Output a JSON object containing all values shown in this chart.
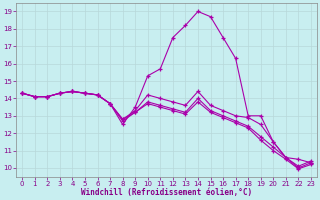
{
  "xlabel": "Windchill (Refroidissement éolien,°C)",
  "background_color": "#c8eef0",
  "grid_color": "#b8d8da",
  "line_color": "#aa00aa",
  "xlim_min": -0.5,
  "xlim_max": 23.5,
  "ylim_min": 9.5,
  "ylim_max": 19.5,
  "yticks": [
    10,
    11,
    12,
    13,
    14,
    15,
    16,
    17,
    18,
    19
  ],
  "xticks": [
    0,
    1,
    2,
    3,
    4,
    5,
    6,
    7,
    8,
    9,
    10,
    11,
    12,
    13,
    14,
    15,
    16,
    17,
    18,
    19,
    20,
    21,
    22,
    23
  ],
  "series": [
    [
      14.3,
      14.1,
      14.1,
      14.3,
      14.4,
      14.3,
      14.2,
      13.7,
      12.5,
      13.5,
      15.3,
      15.7,
      17.5,
      18.2,
      19.0,
      18.7,
      17.5,
      16.3,
      13.0,
      13.0,
      11.5,
      10.6,
      10.5,
      10.3
    ],
    [
      14.3,
      14.1,
      14.1,
      14.3,
      14.4,
      14.3,
      14.2,
      13.7,
      12.8,
      13.3,
      14.2,
      14.0,
      13.8,
      13.6,
      14.4,
      13.6,
      13.3,
      13.0,
      12.9,
      12.5,
      11.5,
      10.6,
      10.1,
      10.4
    ],
    [
      14.3,
      14.1,
      14.1,
      14.3,
      14.4,
      14.3,
      14.2,
      13.7,
      12.7,
      13.2,
      13.8,
      13.6,
      13.4,
      13.2,
      14.0,
      13.3,
      13.0,
      12.7,
      12.4,
      11.8,
      11.2,
      10.6,
      10.0,
      10.3
    ],
    [
      14.3,
      14.1,
      14.1,
      14.3,
      14.4,
      14.3,
      14.2,
      13.7,
      12.8,
      13.2,
      13.7,
      13.5,
      13.3,
      13.1,
      13.8,
      13.2,
      12.9,
      12.6,
      12.3,
      11.6,
      11.0,
      10.5,
      9.95,
      10.2
    ]
  ]
}
